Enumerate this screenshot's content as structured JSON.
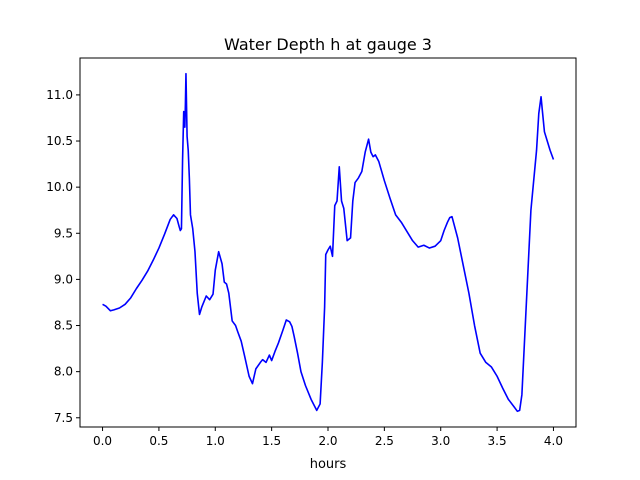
{
  "chart_data": {
    "type": "line",
    "title": "Water Depth h at gauge 3",
    "xlabel": "hours",
    "ylabel": "",
    "xlim": [
      -0.2,
      4.2
    ],
    "ylim": [
      7.4,
      11.4
    ],
    "x_ticks": [
      0.0,
      0.5,
      1.0,
      1.5,
      2.0,
      2.5,
      3.0,
      3.5,
      4.0
    ],
    "x_tick_labels": [
      "0.0",
      "0.5",
      "1.0",
      "1.5",
      "2.0",
      "2.5",
      "3.0",
      "3.5",
      "4.0"
    ],
    "y_ticks": [
      7.5,
      8.0,
      8.5,
      9.0,
      9.5,
      10.0,
      10.5,
      11.0
    ],
    "y_tick_labels": [
      "7.5",
      "8.0",
      "8.5",
      "9.0",
      "9.5",
      "10.0",
      "10.5",
      "11.0"
    ],
    "grid": false,
    "series": [
      {
        "color": "#0000ff",
        "x": [
          0.0,
          0.03,
          0.07,
          0.1,
          0.15,
          0.2,
          0.25,
          0.3,
          0.35,
          0.4,
          0.45,
          0.5,
          0.55,
          0.6,
          0.63,
          0.66,
          0.68,
          0.69,
          0.7,
          0.71,
          0.72,
          0.73,
          0.735,
          0.74,
          0.75,
          0.76,
          0.77,
          0.78,
          0.8,
          0.82,
          0.84,
          0.86,
          0.88,
          0.9,
          0.92,
          0.95,
          0.98,
          1.0,
          1.03,
          1.06,
          1.08,
          1.1,
          1.12,
          1.15,
          1.18,
          1.2,
          1.23,
          1.26,
          1.3,
          1.33,
          1.36,
          1.4,
          1.42,
          1.45,
          1.48,
          1.5,
          1.53,
          1.56,
          1.6,
          1.63,
          1.66,
          1.68,
          1.7,
          1.73,
          1.76,
          1.8,
          1.85,
          1.9,
          1.93,
          1.95,
          1.96,
          1.97,
          1.98,
          2.0,
          2.02,
          2.04,
          2.06,
          2.08,
          2.1,
          2.12,
          2.14,
          2.17,
          2.2,
          2.22,
          2.24,
          2.27,
          2.3,
          2.33,
          2.36,
          2.38,
          2.4,
          2.42,
          2.45,
          2.5,
          2.55,
          2.6,
          2.65,
          2.7,
          2.75,
          2.8,
          2.85,
          2.9,
          2.95,
          3.0,
          3.03,
          3.06,
          3.08,
          3.1,
          3.15,
          3.2,
          3.25,
          3.3,
          3.35,
          3.4,
          3.45,
          3.5,
          3.55,
          3.6,
          3.65,
          3.68,
          3.7,
          3.72,
          3.75,
          3.8,
          3.85,
          3.87,
          3.89,
          3.9,
          3.92,
          3.95,
          3.97,
          4.0
        ],
        "y": [
          8.73,
          8.71,
          8.66,
          8.67,
          8.69,
          8.73,
          8.8,
          8.9,
          8.99,
          9.09,
          9.21,
          9.34,
          9.49,
          9.65,
          9.7,
          9.66,
          9.57,
          9.53,
          9.55,
          10.3,
          10.82,
          10.65,
          10.9,
          11.23,
          10.55,
          10.4,
          10.1,
          9.7,
          9.55,
          9.3,
          8.85,
          8.62,
          8.7,
          8.76,
          8.82,
          8.78,
          8.84,
          9.1,
          9.3,
          9.17,
          8.97,
          8.95,
          8.85,
          8.55,
          8.5,
          8.43,
          8.33,
          8.17,
          7.95,
          7.87,
          8.03,
          8.1,
          8.13,
          8.1,
          8.18,
          8.12,
          8.22,
          8.31,
          8.45,
          8.56,
          8.54,
          8.49,
          8.38,
          8.2,
          8.0,
          7.85,
          7.7,
          7.58,
          7.65,
          8.1,
          8.4,
          8.7,
          9.27,
          9.32,
          9.36,
          9.25,
          9.8,
          9.85,
          10.22,
          9.85,
          9.77,
          9.42,
          9.45,
          9.85,
          10.05,
          10.1,
          10.17,
          10.38,
          10.52,
          10.38,
          10.33,
          10.35,
          10.28,
          10.07,
          9.88,
          9.7,
          9.62,
          9.52,
          9.42,
          9.35,
          9.37,
          9.34,
          9.36,
          9.42,
          9.53,
          9.62,
          9.67,
          9.68,
          9.45,
          9.15,
          8.85,
          8.5,
          8.2,
          8.1,
          8.05,
          7.95,
          7.82,
          7.7,
          7.62,
          7.57,
          7.58,
          7.75,
          8.5,
          9.75,
          10.4,
          10.8,
          10.98,
          10.85,
          10.6,
          10.48,
          10.4,
          10.3
        ]
      }
    ]
  }
}
